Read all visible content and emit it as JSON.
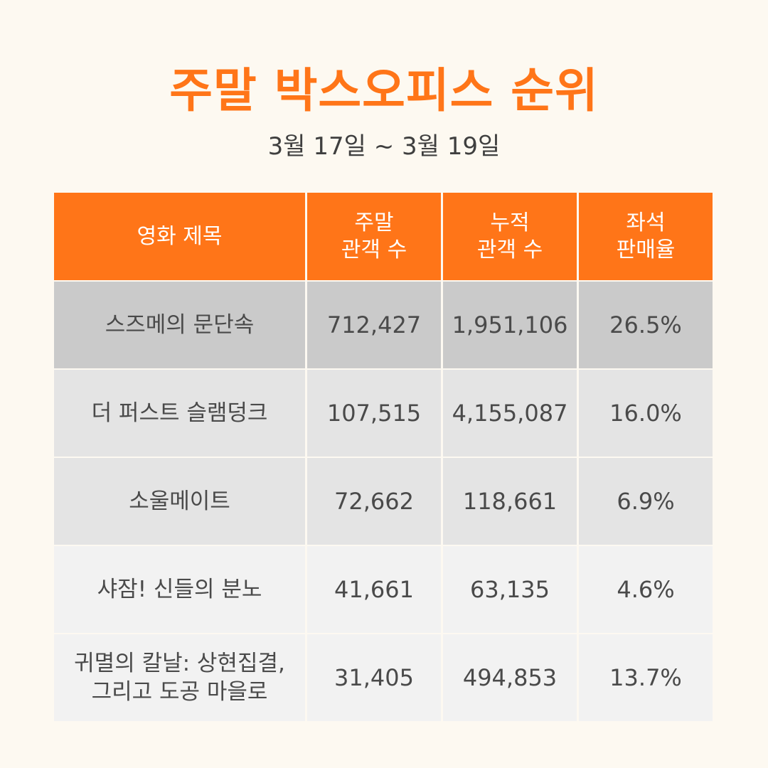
{
  "title": "주말 박스오피스 순위",
  "subtitle": "3월 17일 ~ 3월 19일",
  "table": {
    "headers": [
      "영화 제목",
      "주말\n관객 수",
      "누적\n관객 수",
      "좌석\n판매율"
    ],
    "rows": [
      [
        "스즈메의 문단속",
        "712,427",
        "1,951,106",
        "26.5%"
      ],
      [
        "더 퍼스트 슬램덩크",
        "107,515",
        "4,155,087",
        "16.0%"
      ],
      [
        "소울메이트",
        "72,662",
        "118,661",
        "6.9%"
      ],
      [
        "샤잠! 신들의 분노",
        "41,661",
        "63,135",
        "4.6%"
      ],
      [
        "귀멸의 칼날: 상현집결,\n그리고 도공 마을로",
        "31,405",
        "494,853",
        "13.7%"
      ]
    ]
  },
  "colors": {
    "accent": "#ff7518",
    "background": "#fdf9f1"
  }
}
